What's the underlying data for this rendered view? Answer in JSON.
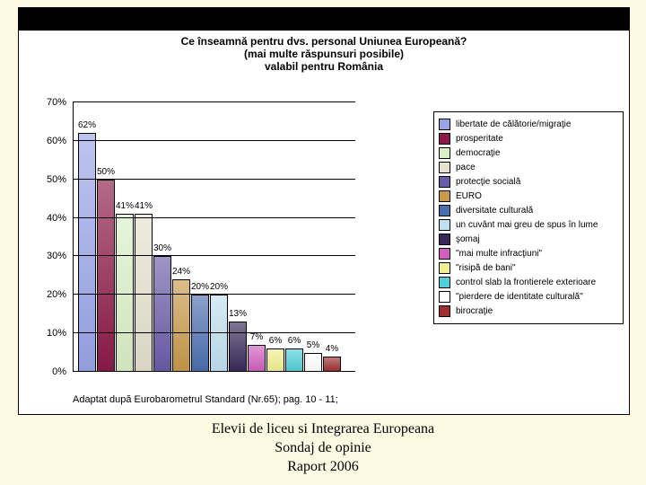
{
  "title": {
    "line1": "Ce înseamnă pentru dvs. personal Uniunea Europeană?",
    "line2": "(mai multe răspunsuri posibile)",
    "line3": "valabil pentru România"
  },
  "source": "Adaptat după Eurobarometrul Standard (Nr.65); pag. 10 - 11;",
  "caption": {
    "l1": "Elevii de liceu si Integrarea Europeana",
    "l2": "Sondaj de opinie",
    "l3": "Raport 2006"
  },
  "y": {
    "max": 70,
    "ticks": [
      0,
      10,
      20,
      30,
      40,
      50,
      60,
      70
    ]
  },
  "bars": [
    {
      "v": 62,
      "c": "#9aa5e8",
      "l": "libertate de călătorie/migraţie"
    },
    {
      "v": 50,
      "c": "#8b1a4a",
      "l": "prosperitate"
    },
    {
      "v": 41,
      "c": "#d9f0c6",
      "l": "democraţie"
    },
    {
      "v": 41,
      "c": "#e6e0cc",
      "l": "pace"
    },
    {
      "v": 30,
      "c": "#6b5ca8",
      "l": "protecţie socială"
    },
    {
      "v": 24,
      "c": "#c89a4a",
      "l": "EURO"
    },
    {
      "v": 20,
      "c": "#4a6fb0",
      "l": "diversitate culturală"
    },
    {
      "v": 20,
      "c": "#bfe0f0",
      "l": "un cuvânt mai greu de spus în lume"
    },
    {
      "v": 13,
      "c": "#3a2a5a",
      "l": "şomaj"
    },
    {
      "v": 7,
      "c": "#d060c0",
      "l": "\"mai multe infracţiuni\""
    },
    {
      "v": 6,
      "c": "#f0f090",
      "l": "\"risipă de bani\""
    },
    {
      "v": 6,
      "c": "#50d0d8",
      "l": "control slab la frontierele exterioare"
    },
    {
      "v": 5,
      "c": "#ffffff",
      "l": "\"pierdere de identitate culturală\""
    },
    {
      "v": 4,
      "c": "#a03030",
      "l": "birocraţie"
    }
  ]
}
